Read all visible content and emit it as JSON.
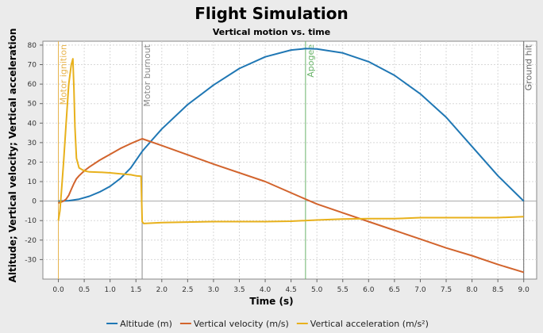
{
  "chart_data": {
    "type": "line",
    "title": "Flight Simulation",
    "subtitle": "Vertical motion vs. time",
    "xlabel": "Time (s)",
    "ylabel": "Altitude; Vertical velocity; Vertical acceleration",
    "xlim": [
      -0.3,
      9.25
    ],
    "ylim": [
      -40,
      82
    ],
    "xticks": [
      "0.0",
      "0.5",
      "1.0",
      "1.5",
      "2.0",
      "2.5",
      "3.0",
      "3.5",
      "4.0",
      "4.5",
      "5.0",
      "5.5",
      "6.0",
      "6.5",
      "7.0",
      "7.5",
      "8.0",
      "8.5",
      "9.0"
    ],
    "yticks": [
      "80",
      "70",
      "60",
      "50",
      "40",
      "30",
      "20",
      "10",
      "0",
      "-10",
      "-20",
      "-30"
    ],
    "grid": true,
    "legend_position": "bottom",
    "annotations": [
      {
        "x": 0.0,
        "label": "Motor ignition",
        "color": "#e8b44c"
      },
      {
        "x": 1.62,
        "label": "Motor burnout",
        "color": "#888888"
      },
      {
        "x": 4.78,
        "label": "Apogee",
        "color": "#6ab46a"
      },
      {
        "x": 9.0,
        "label": "Ground hit",
        "color": "#666666"
      }
    ],
    "series": [
      {
        "name": "Altitude (m)",
        "color": "#1f77b4",
        "x": [
          0.0,
          0.2,
          0.4,
          0.6,
          0.8,
          1.0,
          1.2,
          1.4,
          1.62,
          1.8,
          2.0,
          2.5,
          3.0,
          3.5,
          4.0,
          4.5,
          4.78,
          5.0,
          5.5,
          6.0,
          6.5,
          7.0,
          7.5,
          8.0,
          8.5,
          9.0
        ],
        "y": [
          0,
          0.2,
          1,
          2.5,
          4.7,
          7.6,
          11.6,
          17,
          25.5,
          31,
          37,
          49.5,
          59.5,
          68,
          74,
          77.5,
          78.2,
          78,
          76,
          71.5,
          64.5,
          55,
          43,
          28,
          13,
          0
        ]
      },
      {
        "name": "Vertical velocity (m/s)",
        "color": "#d2642d",
        "x": [
          0.0,
          0.05,
          0.1,
          0.15,
          0.2,
          0.25,
          0.3,
          0.35,
          0.4,
          0.5,
          0.6,
          0.8,
          1.0,
          1.2,
          1.4,
          1.62,
          2.0,
          3.0,
          4.0,
          4.78,
          5.0,
          5.5,
          6.0,
          6.5,
          7.0,
          7.5,
          8.0,
          8.5,
          9.0
        ],
        "y": [
          -1,
          -0.5,
          0,
          1,
          3,
          6,
          9,
          11.5,
          13,
          15.5,
          17.5,
          21,
          24,
          27,
          29.5,
          32,
          28.5,
          19,
          10,
          1,
          -1.5,
          -6,
          -10.5,
          -15,
          -19.5,
          -24,
          -28,
          -32.5,
          -36.5
        ]
      },
      {
        "name": "Vertical acceleration (m/s²)",
        "color": "#e8b11c",
        "x": [
          0.0,
          0.03,
          0.06,
          0.1,
          0.15,
          0.2,
          0.25,
          0.28,
          0.3,
          0.32,
          0.35,
          0.4,
          0.5,
          0.6,
          0.8,
          1.0,
          1.2,
          1.4,
          1.5,
          1.6,
          1.62,
          1.65,
          2.0,
          3.0,
          4.0,
          4.5,
          5.0,
          5.5,
          6.0,
          6.5,
          7.0,
          7.5,
          8.0,
          8.5,
          9.0
        ],
        "y": [
          -10,
          -5,
          5,
          20,
          40,
          60,
          70,
          73,
          58,
          38,
          22,
          17,
          15.5,
          15,
          14.8,
          14.5,
          14,
          13.5,
          13,
          12.8,
          -10.5,
          -11.5,
          -11,
          -10.5,
          -10.5,
          -10.3,
          -9.7,
          -9.2,
          -9,
          -9,
          -8.5,
          -8.5,
          -8.5,
          -8.5,
          -8
        ]
      }
    ]
  }
}
